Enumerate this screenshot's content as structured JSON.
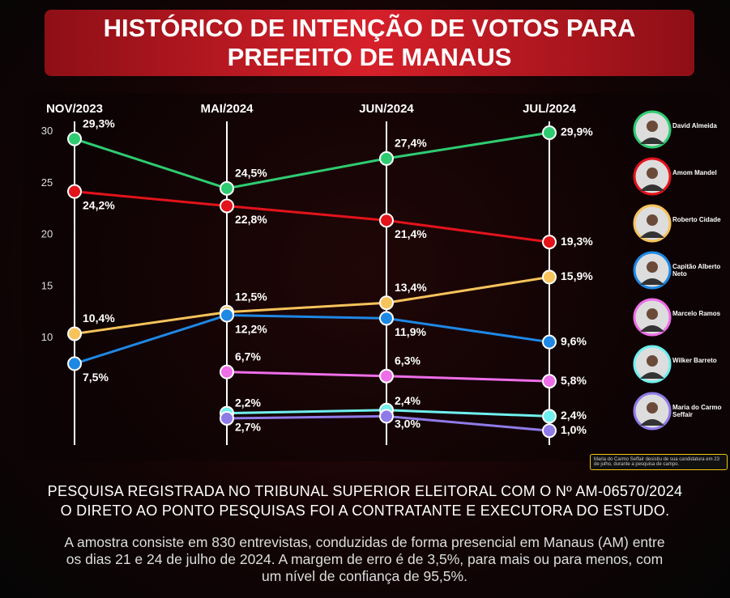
{
  "chart_data": {
    "type": "line",
    "title": "HISTÓRICO DE INTENÇÃO DE VOTOS PARA PREFEITO DE MANAUS",
    "categories": [
      "NOV/2023",
      "MAI/2024",
      "JUN/2024",
      "JUL/2024"
    ],
    "ylim": [
      0,
      31
    ],
    "yticks": [
      10,
      15,
      20,
      25,
      30
    ],
    "series": [
      {
        "name": "David Almeida",
        "color": "#2ecc71",
        "values": [
          29.3,
          24.5,
          27.4,
          29.9
        ],
        "value_labels": [
          "29,3%",
          "24,5%",
          "27,4%",
          "29,9%"
        ]
      },
      {
        "name": "Amom Mandel",
        "color": "#e3131b",
        "values": [
          24.2,
          22.8,
          21.4,
          19.3
        ],
        "value_labels": [
          "24,2%",
          "22,8%",
          "21,4%",
          "19,3%"
        ]
      },
      {
        "name": "Roberto Cidade",
        "color": "#f7c35b",
        "values": [
          10.4,
          12.5,
          13.4,
          15.9
        ],
        "value_labels": [
          "10,4%",
          "12,5%",
          "13,4%",
          "15,9%"
        ]
      },
      {
        "name": "Capitão Alberto Neto",
        "color": "#1e88e5",
        "values": [
          7.5,
          12.2,
          11.9,
          9.6
        ],
        "value_labels": [
          "7,5%",
          "12,2%",
          "11,9%",
          "9,6%"
        ]
      },
      {
        "name": "Marcelo Ramos",
        "color": "#ee6ee8",
        "values": [
          null,
          6.7,
          6.3,
          5.8
        ],
        "value_labels": [
          null,
          "6,7%",
          "6,3%",
          "5,8%"
        ]
      },
      {
        "name": "Wilker Barreto",
        "color": "#6ff0ee",
        "values": [
          null,
          2.7,
          3.0,
          2.4
        ],
        "value_labels": [
          null,
          "2,7%",
          "3,0%",
          "2,4%"
        ]
      },
      {
        "name": "Maria do Carmo Seffair",
        "color": "#8f7be8",
        "values": [
          null,
          2.2,
          2.4,
          1.0
        ],
        "value_labels": [
          null,
          "2,2%",
          "2,4%",
          "1,0%"
        ]
      }
    ],
    "note": "Maria do Carmo Seffair desistiu de sua candidatura em 23 de julho, durante a pesquisa de campo.",
    "footer": [
      "PESQUISA REGISTRADA NO TRIBUNAL SUPERIOR ELEITORAL COM O Nº AM-06570/2024",
      "O DIRETO AO PONTO PESQUISAS FOI A CONTRATANTE E EXECUTORA DO ESTUDO."
    ],
    "description": "A amostra consiste em 830 entrevistas, conduzidas de forma presencial em Manaus (AM) entre os dias 21 e 24 de julho de 2024. A margem de erro é de 3,5%, para mais ou para menos, com um nível de confiança de 95,5%."
  }
}
